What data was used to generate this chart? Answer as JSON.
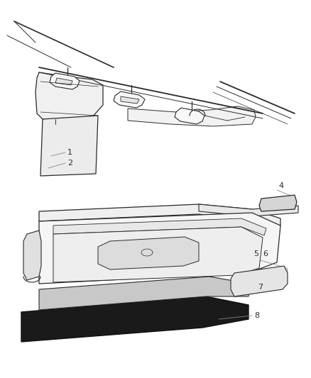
{
  "bg_color": "#ffffff",
  "line_color": "#2a2a2a",
  "label_color": "#2a2a2a",
  "callout_color": "#888888",
  "fig_width": 4.38,
  "fig_height": 5.33,
  "dpi": 100
}
